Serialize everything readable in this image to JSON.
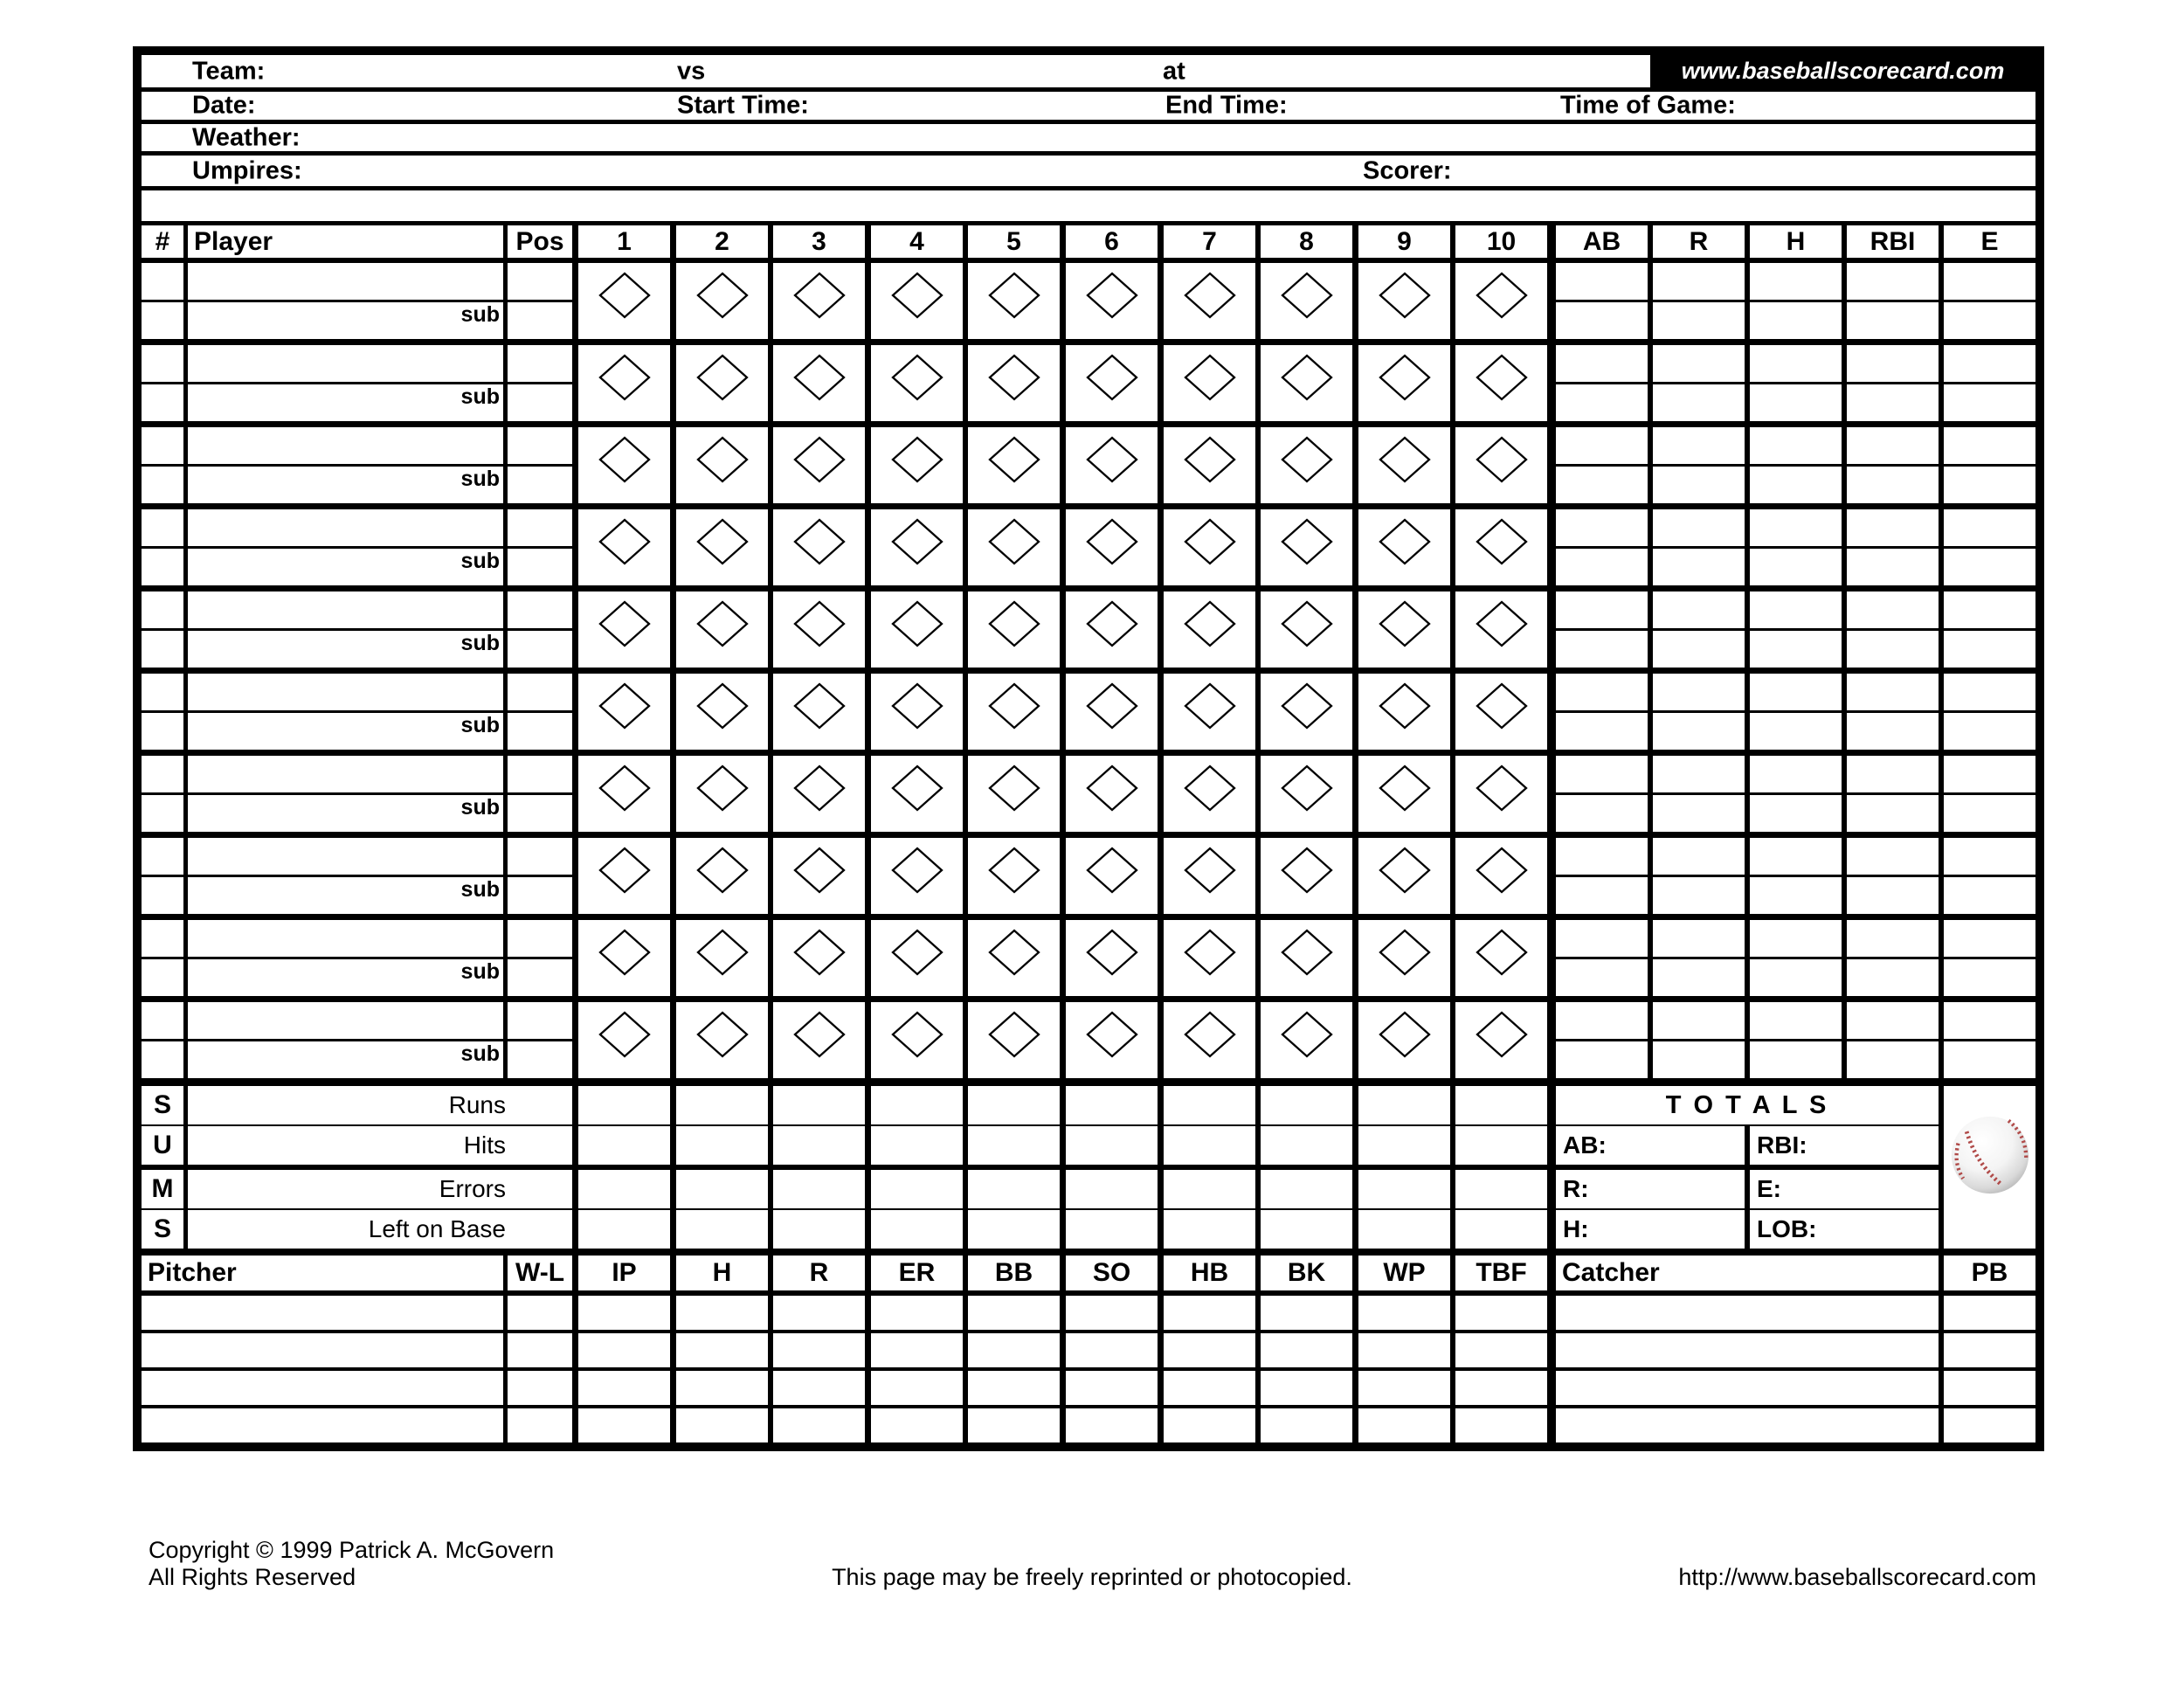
{
  "header": {
    "team_label": "Team:",
    "vs_label": "vs",
    "at_label": "at",
    "site_label": "www.baseballscorecard.com",
    "date_label": "Date:",
    "start_time_label": "Start Time:",
    "end_time_label": "End Time:",
    "time_of_game_label": "Time of Game:",
    "weather_label": "Weather:",
    "umpires_label": "Umpires:",
    "scorer_label": "Scorer:"
  },
  "batting": {
    "columns": {
      "number": "#",
      "player": "Player",
      "position": "Pos"
    },
    "innings": [
      "1",
      "2",
      "3",
      "4",
      "5",
      "6",
      "7",
      "8",
      "9",
      "10"
    ],
    "stats": [
      "AB",
      "R",
      "H",
      "RBI",
      "E"
    ],
    "row_count": 10,
    "sub_label": "sub"
  },
  "sums": {
    "rows": [
      {
        "letter": "S",
        "label": "Runs"
      },
      {
        "letter": "U",
        "label": "Hits"
      },
      {
        "letter": "M",
        "label": "Errors"
      },
      {
        "letter": "S",
        "label": "Left on Base"
      }
    ]
  },
  "totals": {
    "title": "T O T A L S",
    "left": [
      "AB:",
      "R:",
      "H:"
    ],
    "right": [
      "RBI:",
      "E:",
      "LOB:"
    ]
  },
  "pitching": {
    "pitcher_label": "Pitcher",
    "wl_label": "W-L",
    "stats": [
      "IP",
      "H",
      "R",
      "ER",
      "BB",
      "SO",
      "HB",
      "BK",
      "WP",
      "TBF"
    ],
    "catcher_label": "Catcher",
    "pb_label": "PB",
    "row_count": 4
  },
  "footer": {
    "copyright_line1": "Copyright © 1999 Patrick A. McGovern",
    "copyright_line2": "All Rights Reserved",
    "center_note": "This page may be freely reprinted or photocopied.",
    "site_url": "http://www.baseballscorecard.com"
  }
}
